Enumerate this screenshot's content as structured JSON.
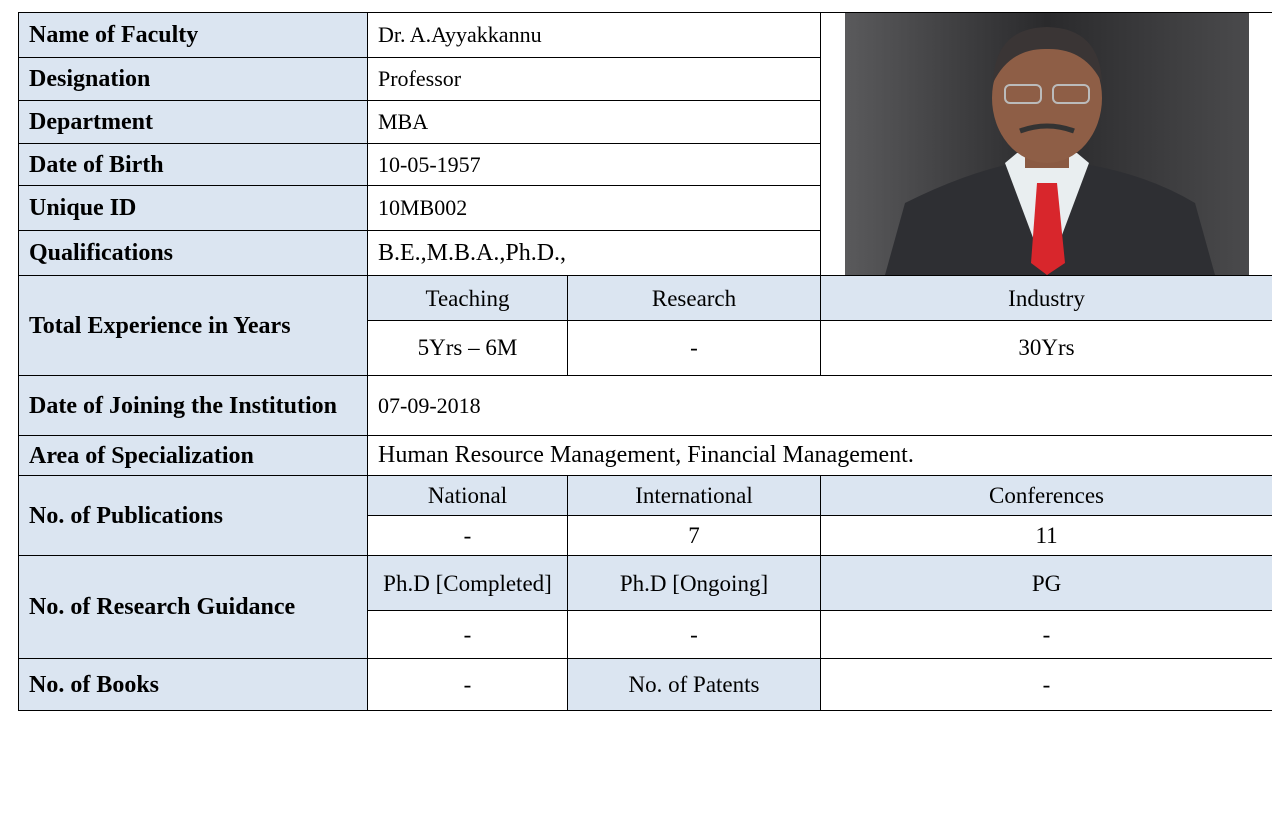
{
  "profile": {
    "rows": [
      {
        "label": "Name of Faculty",
        "value": "Dr. A.Ayyakkannu"
      },
      {
        "label": "Designation",
        "value": "Professor"
      },
      {
        "label": "Department",
        "value": "MBA"
      },
      {
        "label": "Date of Birth",
        "value": "10-05-1957"
      },
      {
        "label": "Unique ID",
        "value": "10MB002"
      },
      {
        "label": "Qualifications",
        "value": "B.E.,M.B.A.,Ph.D.,"
      }
    ],
    "experience": {
      "label": "Total Experience in Years",
      "headers": [
        "Teaching",
        "Research",
        "Industry"
      ],
      "values": [
        "5Yrs – 6M",
        "-",
        "30Yrs"
      ]
    },
    "joining": {
      "label": "Date of Joining the Institution",
      "value": "07-09-2018"
    },
    "specialization": {
      "label": "Area of Specialization",
      "value": "Human Resource Management, Financial Management."
    },
    "publications": {
      "label": "No. of  Publications",
      "headers": [
        "National",
        "International",
        "Conferences"
      ],
      "values": [
        "-",
        7,
        11
      ]
    },
    "guidance": {
      "label": "No. of Research Guidance",
      "headers": [
        "Ph.D [Completed]",
        "Ph.D [Ongoing]",
        "PG"
      ],
      "values": [
        "-",
        "-",
        "-"
      ]
    },
    "books": {
      "label": "No. of Books",
      "value": "-",
      "patents_label": "No. of Patents",
      "patents_value": "-"
    }
  }
}
